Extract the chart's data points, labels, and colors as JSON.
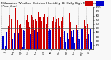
{
  "title": "Milwaukee Weather  Outdoor Humidity  At Daily High Temperature  (Past Year)",
  "background_color": "#f8f8f8",
  "ylim": [
    0,
    100
  ],
  "yticks": [
    10,
    20,
    30,
    40,
    50,
    60,
    70,
    80,
    90,
    100
  ],
  "bar_width": 0.8,
  "color_high": "#cc0000",
  "color_low": "#0000cc",
  "num_bars": 365,
  "ref_value": 50,
  "grid_color": "#999999",
  "title_fontsize": 3.2,
  "tick_fontsize": 2.8,
  "x_tick_fontsize": 2.0,
  "month_positions": [
    15,
    46,
    76,
    107,
    137,
    168,
    198,
    229,
    258,
    289,
    319,
    350
  ],
  "month_labels": [
    "Jul",
    "Aug",
    "Sep",
    "Oct",
    "Nov",
    "Dec",
    "Jan",
    "Feb",
    "Mar",
    "Apr",
    "May",
    "Jun"
  ],
  "month_starts": [
    0,
    31,
    62,
    92,
    123,
    153,
    184,
    215,
    245,
    276,
    306,
    337
  ]
}
